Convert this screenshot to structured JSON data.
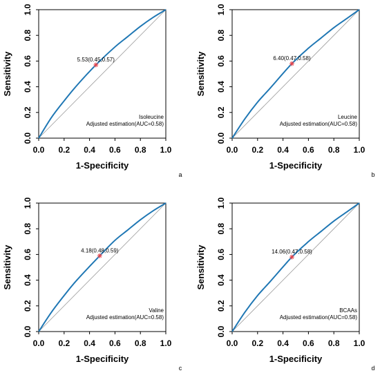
{
  "colors": {
    "roc_curve": "#1f77b4",
    "diagonal": "#9a9a9a",
    "cut_point": "#e8434a",
    "axis": "#000000"
  },
  "chart_data": [
    {
      "type": "line",
      "panel_label": "a",
      "xlabel": "1-Specificity",
      "ylabel": "Sensitivity",
      "xlim": [
        0.0,
        1.0
      ],
      "ylim": [
        0.0,
        1.0
      ],
      "xticks": [
        "0.0",
        "0.2",
        "0.4",
        "0.6",
        "0.8",
        "1.0"
      ],
      "yticks": [
        "0.0",
        "0.2",
        "0.4",
        "0.6",
        "0.8",
        "1.0"
      ],
      "grid": false,
      "cut_point": {
        "x": 0.45,
        "y": 0.57,
        "label": "5.53(0.45,0.57)"
      },
      "legend": [
        "Isoleucine",
        "Adjusted estimation(AUC=0.58)"
      ],
      "legend_position": "bottom-right",
      "series": [
        {
          "x": [
            0,
            0.1,
            0.2,
            0.3,
            0.45,
            0.6,
            0.7,
            0.8,
            0.9,
            1.0
          ],
          "y": [
            0,
            0.16,
            0.29,
            0.41,
            0.57,
            0.71,
            0.79,
            0.87,
            0.94,
            1.0
          ]
        },
        {
          "x": [
            0,
            1
          ],
          "y": [
            0,
            1
          ]
        }
      ]
    },
    {
      "type": "line",
      "panel_label": "b",
      "xlabel": "1-Specificity",
      "ylabel": "Sensitivity",
      "xlim": [
        0.0,
        1.0
      ],
      "ylim": [
        0.0,
        1.0
      ],
      "xticks": [
        "0.0",
        "0.2",
        "0.4",
        "0.6",
        "0.8",
        "1.0"
      ],
      "yticks": [
        "0.0",
        "0.2",
        "0.4",
        "0.6",
        "0.8",
        "1.0"
      ],
      "grid": false,
      "cut_point": {
        "x": 0.47,
        "y": 0.58,
        "label": "6.40(0.47,0.58)"
      },
      "legend": [
        "Leucine",
        "Adjusted estimation(AUC=0.58)"
      ],
      "legend_position": "bottom-right",
      "series": [
        {
          "x": [
            0,
            0.1,
            0.2,
            0.3,
            0.47,
            0.6,
            0.7,
            0.8,
            0.9,
            1.0
          ],
          "y": [
            0,
            0.15,
            0.28,
            0.39,
            0.58,
            0.7,
            0.78,
            0.86,
            0.93,
            1.0
          ]
        },
        {
          "x": [
            0,
            1
          ],
          "y": [
            0,
            1
          ]
        }
      ]
    },
    {
      "type": "line",
      "panel_label": "c",
      "xlabel": "1-Specificity",
      "ylabel": "Sensitivity",
      "xlim": [
        0.0,
        1.0
      ],
      "ylim": [
        0.0,
        1.0
      ],
      "xticks": [
        "0.0",
        "0.2",
        "0.4",
        "0.6",
        "0.8",
        "1.0"
      ],
      "yticks": [
        "0.0",
        "0.2",
        "0.4",
        "0.6",
        "0.8",
        "1.0"
      ],
      "grid": false,
      "cut_point": {
        "x": 0.48,
        "y": 0.59,
        "label": "4.18(0.48,0.59)"
      },
      "legend": [
        "Valine",
        "Adjusted estimation(AUC=0.58)"
      ],
      "legend_position": "bottom-right",
      "series": [
        {
          "x": [
            0,
            0.1,
            0.2,
            0.3,
            0.48,
            0.6,
            0.7,
            0.8,
            0.9,
            1.0
          ],
          "y": [
            0,
            0.15,
            0.28,
            0.4,
            0.59,
            0.71,
            0.79,
            0.87,
            0.94,
            1.0
          ]
        },
        {
          "x": [
            0,
            1
          ],
          "y": [
            0,
            1
          ]
        }
      ]
    },
    {
      "type": "line",
      "panel_label": "d",
      "xlabel": "1-Specificity",
      "ylabel": "Sensitivity",
      "xlim": [
        0.0,
        1.0
      ],
      "ylim": [
        0.0,
        1.0
      ],
      "xticks": [
        "0.0",
        "0.2",
        "0.4",
        "0.6",
        "0.8",
        "1.0"
      ],
      "yticks": [
        "0.0",
        "0.2",
        "0.4",
        "0.6",
        "0.8",
        "1.0"
      ],
      "grid": false,
      "cut_point": {
        "x": 0.47,
        "y": 0.58,
        "label": "14.06(0.47,0.58)"
      },
      "legend": [
        "BCAAs",
        "Adjusted estimation(AUC=0.58)"
      ],
      "legend_position": "bottom-right",
      "series": [
        {
          "x": [
            0,
            0.1,
            0.2,
            0.3,
            0.47,
            0.6,
            0.7,
            0.8,
            0.9,
            1.0
          ],
          "y": [
            0,
            0.15,
            0.28,
            0.39,
            0.58,
            0.7,
            0.78,
            0.86,
            0.93,
            1.0
          ]
        },
        {
          "x": [
            0,
            1
          ],
          "y": [
            0,
            1
          ]
        }
      ]
    }
  ]
}
